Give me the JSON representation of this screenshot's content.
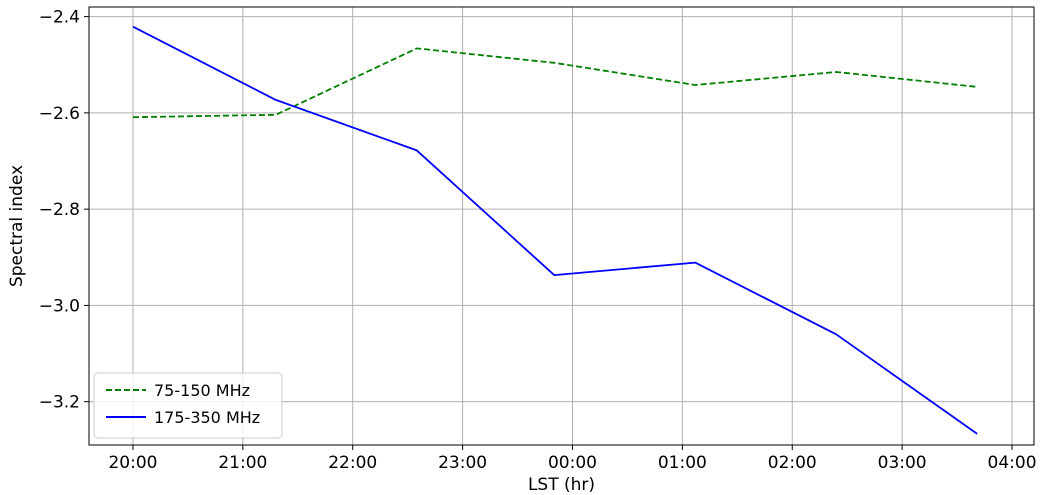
{
  "chart_data": {
    "type": "line",
    "title": "",
    "xlabel": "LST (hr)",
    "ylabel": "Spectral index",
    "x_tick_labels": [
      "20:00",
      "21:00",
      "22:00",
      "23:00",
      "00:00",
      "01:00",
      "02:00",
      "03:00",
      "04:00"
    ],
    "x_tick_hours": [
      20,
      21,
      22,
      23,
      24,
      25,
      26,
      27,
      28
    ],
    "xlim_hours": [
      19.6,
      28.2
    ],
    "y_ticks": [
      -2.4,
      -2.6,
      -2.8,
      -3.0,
      -3.2
    ],
    "y_tick_labels": [
      "−2.4",
      "−2.6",
      "−2.8",
      "−3.0",
      "−3.2"
    ],
    "ylim": [
      -3.29,
      -2.38
    ],
    "grid": true,
    "legend_position": "lower-left",
    "series": [
      {
        "name": "75-150 MHz",
        "color": "#008000",
        "style": "dashed",
        "points": [
          {
            "lst": "20:00",
            "y": -2.609
          },
          {
            "lst": "21:18",
            "y": -2.604
          },
          {
            "lst": "22:35",
            "y": -2.466
          },
          {
            "lst": "23:50",
            "y": -2.496
          },
          {
            "lst": "01:07",
            "y": -2.542
          },
          {
            "lst": "02:24",
            "y": -2.515
          },
          {
            "lst": "03:41",
            "y": -2.546
          }
        ]
      },
      {
        "name": "175-350 MHz",
        "color": "#0000ff",
        "style": "solid",
        "points": [
          {
            "lst": "20:00",
            "y": -2.421
          },
          {
            "lst": "21:18",
            "y": -2.573
          },
          {
            "lst": "22:35",
            "y": -2.678
          },
          {
            "lst": "23:50",
            "y": -2.937
          },
          {
            "lst": "01:07",
            "y": -2.911
          },
          {
            "lst": "02:24",
            "y": -3.06
          },
          {
            "lst": "03:41",
            "y": -3.267
          }
        ]
      }
    ]
  }
}
